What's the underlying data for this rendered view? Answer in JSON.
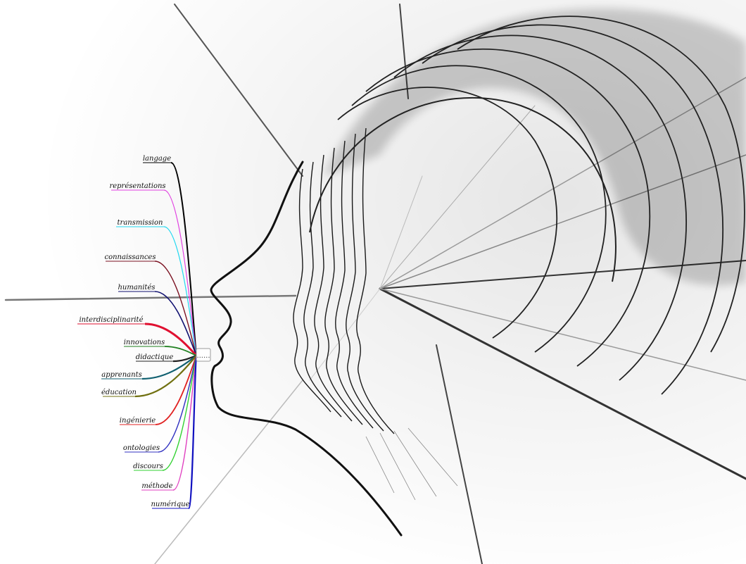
{
  "mindmap": {
    "center_node": {
      "label": "......"
    },
    "branches": [
      {
        "label": "langage",
        "color": "#000000"
      },
      {
        "label": "représentations",
        "color": "#e040e0"
      },
      {
        "label": "transmission",
        "color": "#20d8f0"
      },
      {
        "label": "connaissances",
        "color": "#7a1020"
      },
      {
        "label": "humanités",
        "color": "#101070"
      },
      {
        "label": "interdisciplinarité",
        "color": "#e01030"
      },
      {
        "label": "innovations",
        "color": "#208020"
      },
      {
        "label": "didactique",
        "color": "#202020"
      },
      {
        "label": "apprenants",
        "color": "#106070"
      },
      {
        "label": "éducation",
        "color": "#707010"
      },
      {
        "label": "ingénierie",
        "color": "#e02020"
      },
      {
        "label": "ontologies",
        "color": "#3030c0"
      },
      {
        "label": "discours",
        "color": "#30d030"
      },
      {
        "label": "méthode",
        "color": "#e040c0"
      },
      {
        "label": "numérique",
        "color": "#1010c0"
      }
    ]
  }
}
